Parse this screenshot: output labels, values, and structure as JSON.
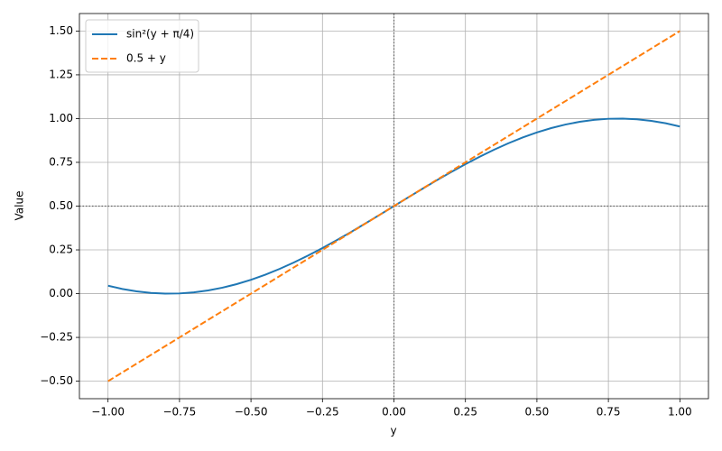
{
  "chart_data": {
    "type": "line",
    "x_label": "y",
    "y_label": "Value",
    "x": [
      -1,
      -0.95,
      -0.9,
      -0.85,
      -0.8,
      -0.75,
      -0.7,
      -0.65,
      -0.6,
      -0.55,
      -0.5,
      -0.45,
      -0.4,
      -0.35,
      -0.3,
      -0.25,
      -0.2,
      -0.15,
      -0.1,
      -0.05,
      0,
      0.05,
      0.1,
      0.15,
      0.2,
      0.25,
      0.3,
      0.35,
      0.4,
      0.45,
      0.5,
      0.55,
      0.6,
      0.65,
      0.7,
      0.75,
      0.8,
      0.85,
      0.9,
      0.95,
      1
    ],
    "series": [
      {
        "name": "sin²(y + π/4)",
        "color": "#1f77b4",
        "linestyle": "solid",
        "values": [
          0.0454,
          0.0268,
          0.0131,
          0.0042,
          0.0002,
          0.0012,
          0.0073,
          0.0182,
          0.034,
          0.0544,
          0.0793,
          0.1084,
          0.1413,
          0.1779,
          0.2177,
          0.2603,
          0.3053,
          0.3522,
          0.4007,
          0.4501,
          0.5,
          0.5499,
          0.5993,
          0.6478,
          0.6947,
          0.7397,
          0.7823,
          0.8221,
          0.8587,
          0.8916,
          0.9207,
          0.9456,
          0.966,
          0.9818,
          0.9927,
          0.9988,
          0.9998,
          0.9958,
          0.9869,
          0.9732,
          0.9546
        ]
      },
      {
        "name": "0.5 + y",
        "color": "#ff7f0e",
        "linestyle": "dashed",
        "values": [
          -0.5,
          -0.45,
          -0.4,
          -0.35,
          -0.3,
          -0.25,
          -0.2,
          -0.15,
          -0.1,
          -0.05,
          0,
          0.05,
          0.1,
          0.15,
          0.2,
          0.25,
          0.3,
          0.35,
          0.4,
          0.45,
          0.5,
          0.55,
          0.6,
          0.65,
          0.7,
          0.75,
          0.8,
          0.85,
          0.9,
          0.95,
          1,
          1.05,
          1.1,
          1.15,
          1.2,
          1.25,
          1.3,
          1.35,
          1.4,
          1.45,
          1.5
        ]
      }
    ],
    "xlim": [
      -1.1,
      1.1
    ],
    "ylim": [
      -0.6,
      1.6
    ],
    "xticks": [
      {
        "value": -1,
        "label": "−1.00"
      },
      {
        "value": -0.75,
        "label": "−0.75"
      },
      {
        "value": -0.5,
        "label": "−0.50"
      },
      {
        "value": -0.25,
        "label": "−0.25"
      },
      {
        "value": 0,
        "label": "0.00"
      },
      {
        "value": 0.25,
        "label": "0.25"
      },
      {
        "value": 0.5,
        "label": "0.50"
      },
      {
        "value": 0.75,
        "label": "0.75"
      },
      {
        "value": 1,
        "label": "1.00"
      }
    ],
    "yticks": [
      {
        "value": -0.5,
        "label": "−0.50"
      },
      {
        "value": -0.25,
        "label": "−0.25"
      },
      {
        "value": 0,
        "label": "0.00"
      },
      {
        "value": 0.25,
        "label": "0.25"
      },
      {
        "value": 0.5,
        "label": "0.50"
      },
      {
        "value": 0.75,
        "label": "0.75"
      },
      {
        "value": 1,
        "label": "1.00"
      },
      {
        "value": 1.25,
        "label": "1.25"
      },
      {
        "value": 1.5,
        "label": "1.50"
      }
    ],
    "hlines": [
      0.5
    ],
    "vlines": [
      0
    ],
    "grid": true,
    "legend": "upper left"
  }
}
